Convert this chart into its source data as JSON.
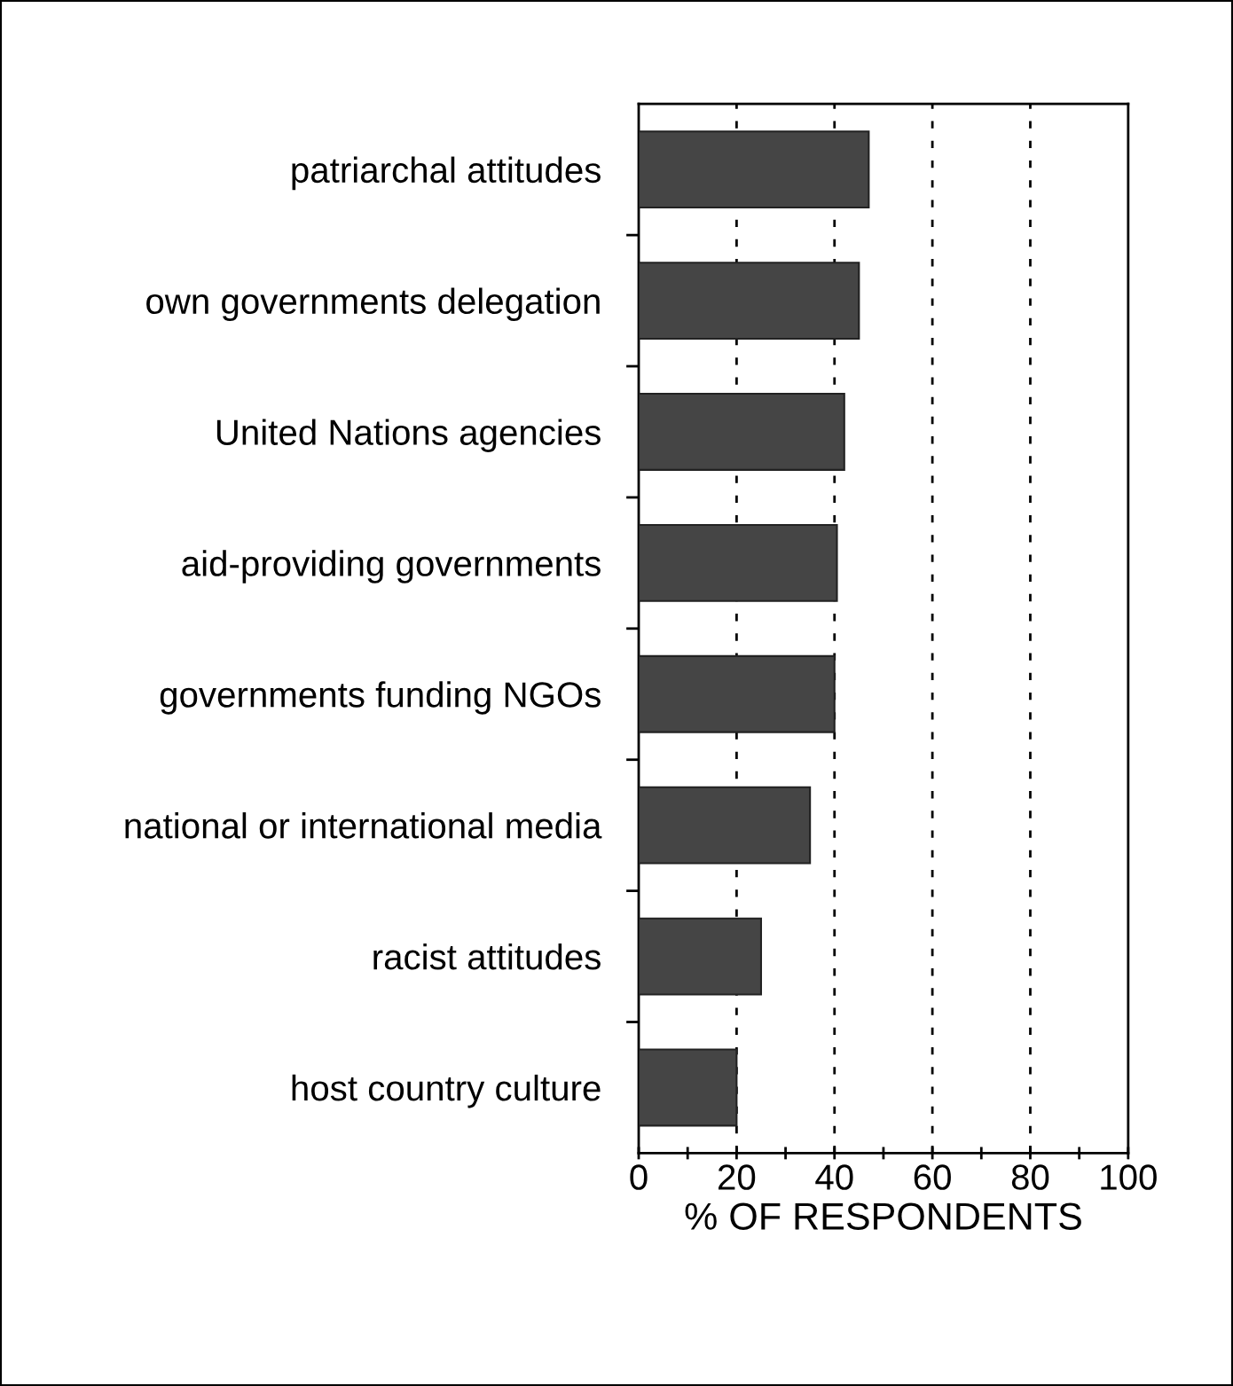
{
  "chart_data": {
    "type": "bar",
    "orientation": "horizontal",
    "xlabel": "% OF RESPONDENTS",
    "categories": [
      "patriarchal attitudes",
      "own governments delegation",
      "United Nations agencies",
      "aid-providing governments",
      "governments funding NGOs",
      "national or international media",
      "racist attitudes",
      "host country culture"
    ],
    "values": [
      47,
      45,
      42,
      40.5,
      40,
      35,
      25,
      20
    ],
    "color": "#454545",
    "xlim": [
      0,
      100
    ],
    "xticks": [
      0,
      {
        "value": 10,
        "label": null
      },
      20,
      {
        "value": 30,
        "label": null
      },
      40,
      {
        "value": 50,
        "label": null
      },
      60,
      {
        "value": 70,
        "label": null
      },
      80,
      {
        "value": 90,
        "label": null
      },
      100
    ],
    "grid": "x"
  }
}
